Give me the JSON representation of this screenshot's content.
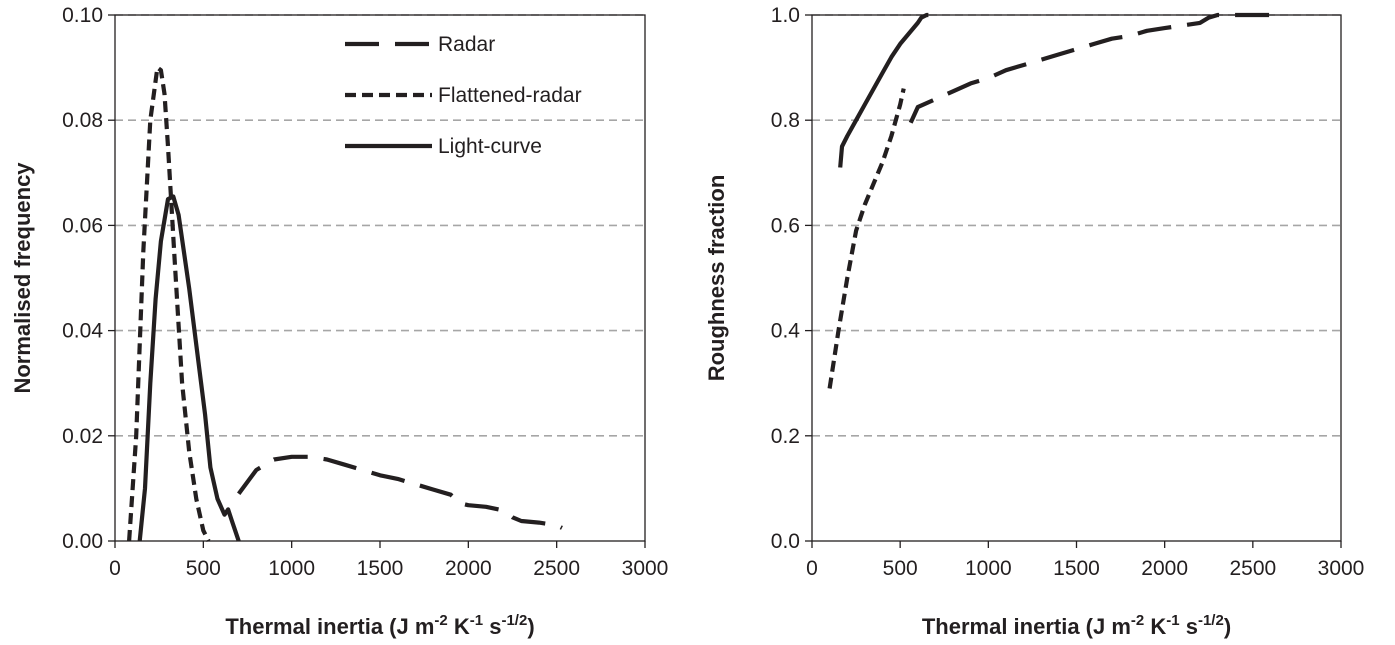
{
  "chart_data": [
    {
      "type": "line",
      "title": "",
      "xlabel": "Thermal inertia (J m-2 K-1 s-1/2)",
      "xlabel_parts": [
        "Thermal inertia (J m",
        "-2",
        " K",
        "-1",
        " s",
        "-1/2",
        ")"
      ],
      "ylabel": "Normalised frequency",
      "xlim": [
        0,
        3000
      ],
      "ylim": [
        0,
        0.1
      ],
      "xticks": [
        "0",
        "500",
        "1000",
        "1500",
        "2000",
        "2500",
        "3000"
      ],
      "yticks": [
        "0.00",
        "0.02",
        "0.04",
        "0.06",
        "0.08",
        "0.10"
      ],
      "grid": "horizontal dashed",
      "legend": "top-right",
      "series": [
        {
          "name": "Radar",
          "style": "long-dash",
          "x": [
            700,
            800,
            900,
            1000,
            1100,
            1200,
            1300,
            1400,
            1500,
            1600,
            1700,
            1800,
            1900,
            1920,
            1950,
            2000,
            2100,
            2200,
            2250,
            2300,
            2400,
            2500,
            2530
          ],
          "y": [
            0.009,
            0.0135,
            0.0155,
            0.016,
            0.016,
            0.0155,
            0.0145,
            0.0135,
            0.0125,
            0.0118,
            0.0108,
            0.0098,
            0.0088,
            0.0082,
            0.0072,
            0.0068,
            0.0065,
            0.0058,
            0.0045,
            0.0038,
            0.0035,
            0.003,
            0.0025
          ]
        },
        {
          "name": "Flattened-radar",
          "style": "short-dash",
          "x": [
            80,
            120,
            160,
            200,
            240,
            260,
            280,
            300,
            340,
            380,
            420,
            460,
            500,
            530
          ],
          "y": [
            0,
            0.02,
            0.055,
            0.08,
            0.09,
            0.0895,
            0.085,
            0.075,
            0.052,
            0.03,
            0.017,
            0.008,
            0.002,
            0
          ]
        },
        {
          "name": "Light-curve",
          "style": "solid",
          "x": [
            140,
            170,
            200,
            230,
            260,
            300,
            330,
            360,
            390,
            420,
            450,
            480,
            510,
            540,
            580,
            620,
            640,
            660,
            690,
            700
          ],
          "y": [
            0,
            0.01,
            0.03,
            0.046,
            0.057,
            0.065,
            0.0655,
            0.062,
            0.055,
            0.048,
            0.04,
            0.032,
            0.024,
            0.014,
            0.008,
            0.005,
            0.006,
            0.004,
            0.001,
            0
          ]
        }
      ]
    },
    {
      "type": "line",
      "title": "",
      "xlabel": "Thermal inertia (J m-2 K-1 s-1/2)",
      "xlabel_parts": [
        "Thermal inertia (J m",
        "-2",
        " K",
        "-1",
        " s",
        "-1/2",
        ")"
      ],
      "ylabel": "Roughness fraction",
      "xlim": [
        0,
        3000
      ],
      "ylim": [
        0,
        1.0
      ],
      "xticks": [
        "0",
        "500",
        "1000",
        "1500",
        "2000",
        "2500",
        "3000"
      ],
      "yticks": [
        "0.0",
        "0.2",
        "0.4",
        "0.6",
        "0.8",
        "1.0"
      ],
      "grid": "horizontal dashed",
      "legend": "none",
      "series": [
        {
          "name": "Radar",
          "style": "long-dash",
          "x": [
            560,
            600,
            700,
            800,
            900,
            1000,
            1100,
            1200,
            1300,
            1400,
            1500,
            1600,
            1700,
            1800,
            1900,
            2000,
            2100,
            2200,
            2250,
            2300,
            2400,
            2500,
            2600
          ],
          "y": [
            0.795,
            0.825,
            0.84,
            0.855,
            0.87,
            0.88,
            0.895,
            0.905,
            0.915,
            0.925,
            0.935,
            0.945,
            0.955,
            0.96,
            0.97,
            0.975,
            0.98,
            0.985,
            0.995,
            1.0,
            1.0,
            1.0,
            1.0
          ]
        },
        {
          "name": "Flattened-radar",
          "style": "short-dash",
          "x": [
            100,
            150,
            200,
            250,
            300,
            350,
            400,
            450,
            500,
            520
          ],
          "y": [
            0.29,
            0.4,
            0.5,
            0.59,
            0.64,
            0.68,
            0.72,
            0.77,
            0.83,
            0.86
          ]
        },
        {
          "name": "Light-curve",
          "style": "solid",
          "x": [
            160,
            170,
            200,
            250,
            300,
            350,
            400,
            450,
            500,
            550,
            600,
            620,
            650,
            660
          ],
          "y": [
            0.71,
            0.75,
            0.77,
            0.8,
            0.83,
            0.86,
            0.89,
            0.92,
            0.945,
            0.965,
            0.985,
            0.995,
            1.0,
            1.0
          ]
        }
      ]
    }
  ]
}
